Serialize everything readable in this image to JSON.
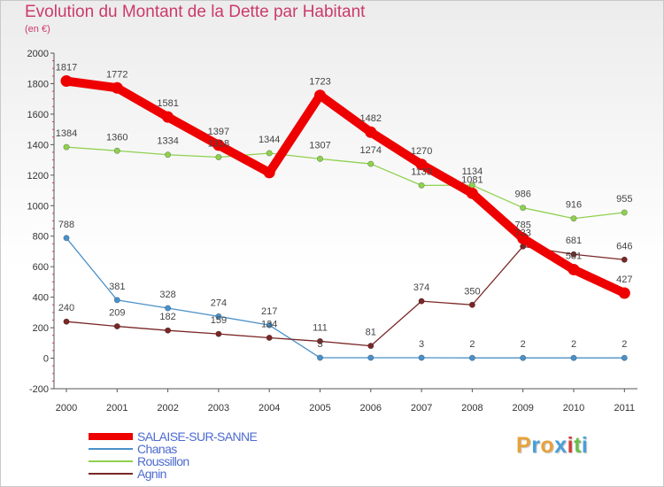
{
  "header": {
    "title": "Evolution du Montant de la Dette par Habitant",
    "subtitle": "(en €)"
  },
  "logo": {
    "text": [
      "P",
      "r",
      "o",
      "x",
      "i",
      "t",
      "i"
    ],
    "colors": [
      "#e8a23a",
      "#4a9fd8",
      "#e8a23a",
      "#4a9fd8",
      "#d33b3b",
      "#6abf4b",
      "#4a9fd8"
    ]
  },
  "chart_data": {
    "type": "line",
    "categories": [
      "2000",
      "2001",
      "2002",
      "2003",
      "2004",
      "2005",
      "2006",
      "2007",
      "2008",
      "2009",
      "2010",
      "2011"
    ],
    "ylim": [
      -200,
      2000
    ],
    "yticks": [
      "-200",
      "0",
      "200",
      "400",
      "600",
      "800",
      "1000",
      "1200",
      "1400",
      "1600",
      "1800",
      "2000"
    ],
    "ytick_values": [
      -200,
      0,
      200,
      400,
      600,
      800,
      1000,
      1200,
      1400,
      1600,
      1800,
      2000
    ],
    "grid": false,
    "legend_position": "bottom-left",
    "series": [
      {
        "name": "SALAISE-SUR-SANNE",
        "color": "#ee0000",
        "thick": true,
        "values": [
          1817,
          1772,
          1581,
          1397,
          1217,
          1723,
          1482,
          1270,
          1081,
          785,
          581,
          427
        ],
        "labels": [
          "1817",
          "1772",
          "1581",
          "1397",
          "",
          "1723",
          "1482",
          "1270",
          "1081",
          "785",
          "581",
          "427"
        ]
      },
      {
        "name": "Chanas",
        "color": "#4a90c8",
        "thick": false,
        "values": [
          788,
          381,
          328,
          274,
          217,
          3,
          3,
          3,
          2,
          2,
          2,
          2
        ],
        "labels": [
          "788",
          "381",
          "328",
          "274",
          "217",
          "3",
          "",
          "3",
          "2",
          "2",
          "2",
          "2"
        ]
      },
      {
        "name": "Roussillon",
        "color": "#8fd14f",
        "thick": false,
        "values": [
          1384,
          1360,
          1334,
          1318,
          1344,
          1307,
          1274,
          1133,
          1134,
          986,
          916,
          955
        ],
        "labels": [
          "1384",
          "1360",
          "1334",
          "1318",
          "1344",
          "1307",
          "1274",
          "1133",
          "1134",
          "986",
          "916",
          "955"
        ]
      },
      {
        "name": "Agnin",
        "color": "#7a2727",
        "thick": false,
        "values": [
          240,
          209,
          182,
          159,
          134,
          111,
          81,
          374,
          350,
          733,
          681,
          646
        ],
        "labels": [
          "240",
          "209",
          "182",
          "159",
          "134",
          "111",
          "81",
          "374",
          "350",
          "733",
          "681",
          "646"
        ]
      }
    ]
  }
}
